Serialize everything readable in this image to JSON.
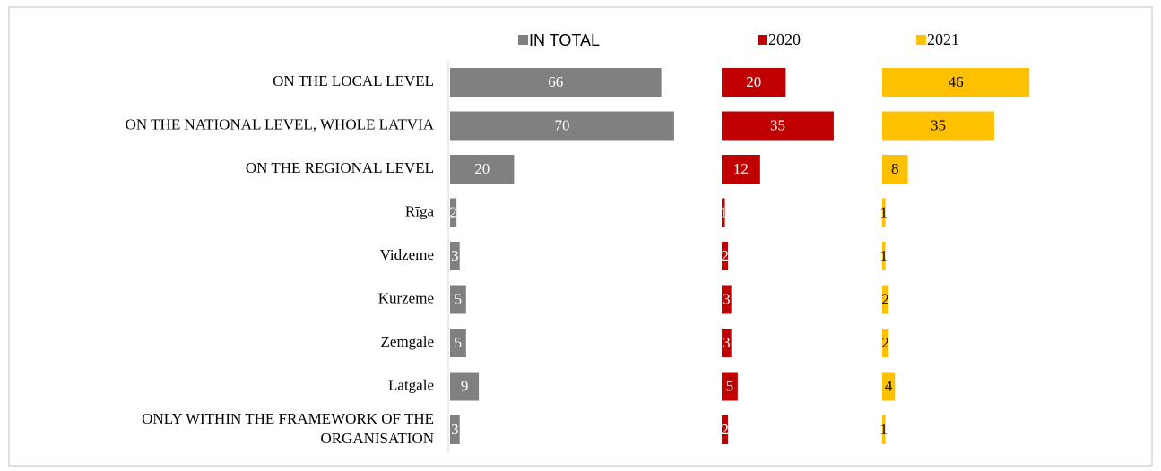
{
  "chart_data": {
    "type": "bar",
    "orientation": "horizontal",
    "categories": [
      "ON THE LOCAL LEVEL",
      "ON THE NATIONAL LEVEL, WHOLE LATVIA",
      "ON THE REGIONAL LEVEL",
      "Rīga",
      "Vidzeme",
      "Kurzeme",
      "Zemgale",
      "Latgale",
      "ONLY WITHIN THE FRAMEWORK OF THE\nORGANISATION"
    ],
    "series": [
      {
        "name": "IN TOTAL",
        "color": "#808080",
        "values": [
          66,
          70,
          20,
          2,
          3,
          5,
          5,
          9,
          3
        ]
      },
      {
        "name": "2020",
        "color": "#c00000",
        "values": [
          20,
          35,
          12,
          1,
          2,
          3,
          3,
          5,
          2
        ]
      },
      {
        "name": "2021",
        "color": "#ffc000",
        "values": [
          46,
          35,
          8,
          1,
          1,
          2,
          2,
          4,
          1
        ]
      }
    ],
    "legend": "top"
  }
}
